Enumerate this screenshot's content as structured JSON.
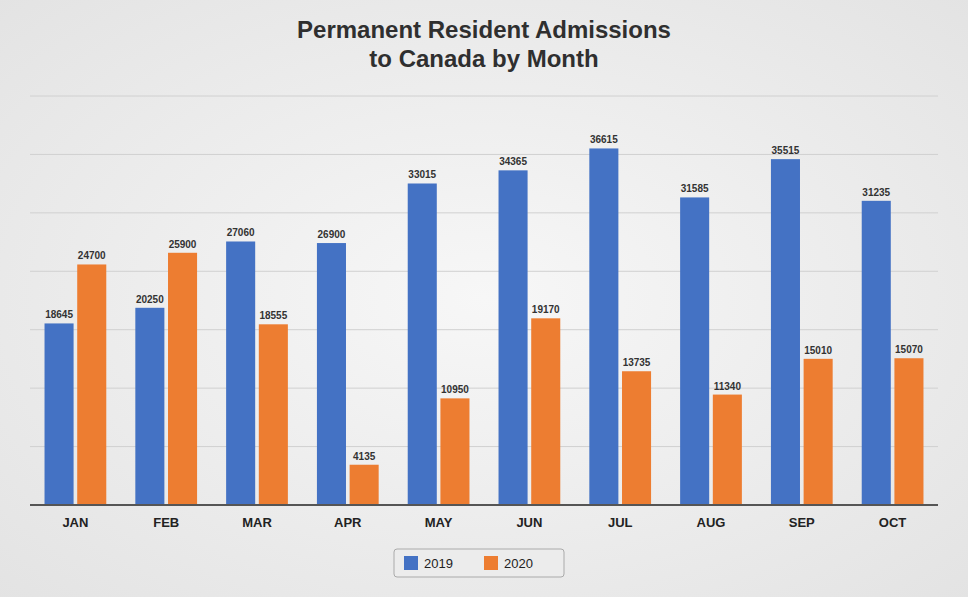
{
  "chart_data": {
    "type": "bar",
    "title": "Permanent Resident Admissions\nto Canada by Month",
    "categories": [
      "JAN",
      "FEB",
      "MAR",
      "APR",
      "MAY",
      "JUN",
      "JUL",
      "AUG",
      "SEP",
      "OCT"
    ],
    "series": [
      {
        "name": "2019",
        "color": "#4472C4",
        "values": [
          18645,
          20250,
          27060,
          26900,
          33015,
          34365,
          36615,
          31585,
          35515,
          31235
        ]
      },
      {
        "name": "2020",
        "color": "#ED7D31",
        "values": [
          24700,
          25900,
          18555,
          4135,
          10950,
          19170,
          13735,
          11340,
          15010,
          15070
        ]
      }
    ],
    "ylim": [
      0,
      42000
    ],
    "yticks": [
      0,
      6000,
      12000,
      18000,
      24000,
      30000,
      36000,
      42000
    ],
    "grid": true,
    "legend": "bottom",
    "data_labels": true,
    "tick_labels": "x"
  }
}
